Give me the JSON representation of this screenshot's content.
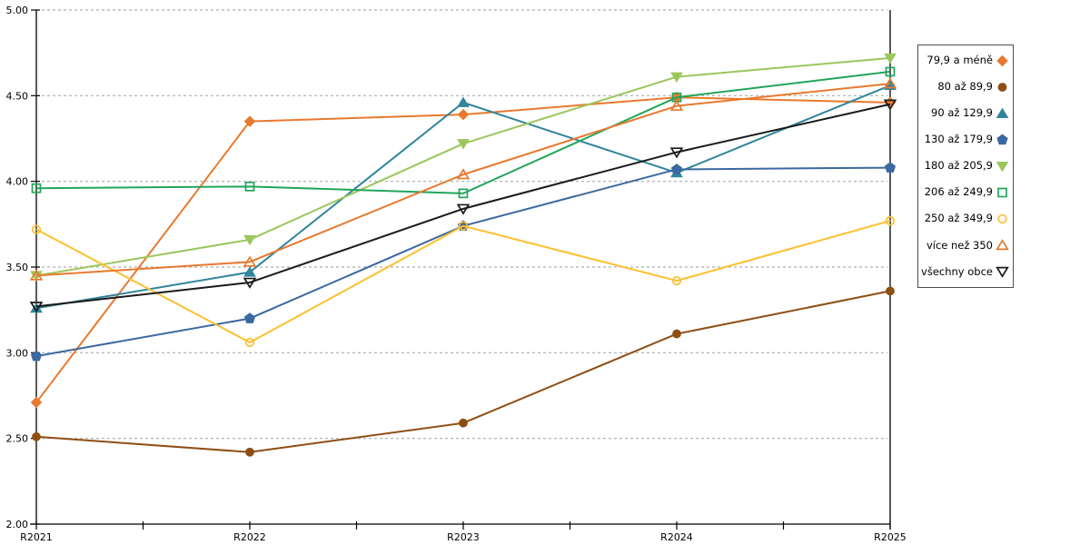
{
  "chart_data": {
    "type": "line",
    "title": "",
    "xlabel": "",
    "ylabel": "",
    "x_categories": [
      "R2021",
      "R2022",
      "R2023",
      "R2024",
      "R2025"
    ],
    "y_axis": {
      "min": 2.0,
      "max": 5.0,
      "step": 0.5,
      "tick_labels": [
        "2.00",
        "2.50",
        "3.00",
        "3.50",
        "4.00",
        "4.50",
        "5.00"
      ]
    },
    "grid": {
      "horizontal": true,
      "style": "dashed",
      "color": "#adadad"
    },
    "legend_position": "right",
    "series": [
      {
        "name": "79,9 a méně",
        "color": "#e8792e",
        "marker": "diamond",
        "fill": "filled",
        "values": [
          2.71,
          4.35,
          4.39,
          4.49,
          4.46
        ]
      },
      {
        "name": "80 až 89,9",
        "color": "#8f4e13",
        "marker": "circle",
        "fill": "filled",
        "values": [
          2.51,
          2.42,
          2.59,
          3.11,
          3.36
        ]
      },
      {
        "name": "90 až 129,9",
        "color": "#31859c",
        "marker": "triangle-up",
        "fill": "filled",
        "values": [
          3.26,
          3.47,
          4.46,
          4.05,
          4.56
        ]
      },
      {
        "name": "130 až 179,9",
        "color": "#3c68a0",
        "marker": "pentagon",
        "fill": "filled",
        "values": [
          2.98,
          3.2,
          3.74,
          4.07,
          4.08
        ]
      },
      {
        "name": "180 až 205,9",
        "color": "#9cc65b",
        "marker": "triangle-down",
        "fill": "filled",
        "values": [
          3.45,
          3.66,
          4.22,
          4.61,
          4.72
        ]
      },
      {
        "name": "206 až 249,9",
        "color": "#22a55c",
        "marker": "square",
        "fill": "hollow",
        "values": [
          3.96,
          3.97,
          3.93,
          4.49,
          4.64
        ]
      },
      {
        "name": "250 až 349,9",
        "color": "#fdc02f",
        "marker": "circle",
        "fill": "hollow",
        "values": [
          3.72,
          3.06,
          3.74,
          3.42,
          3.77
        ]
      },
      {
        "name": "více než 350",
        "color": "#e8792e",
        "marker": "triangle-up",
        "fill": "hollow",
        "values": [
          3.45,
          3.53,
          4.04,
          4.44,
          4.57
        ]
      },
      {
        "name": "všechny obce",
        "color": "#1a1a1a",
        "marker": "triangle-down",
        "fill": "hollow",
        "values": [
          3.27,
          3.41,
          3.84,
          4.17,
          4.45
        ]
      }
    ]
  },
  "colors": {
    "background": "#ffffff",
    "axis": "#000000",
    "gridline": "#adadad",
    "legend_border": "#4d4d4d"
  }
}
